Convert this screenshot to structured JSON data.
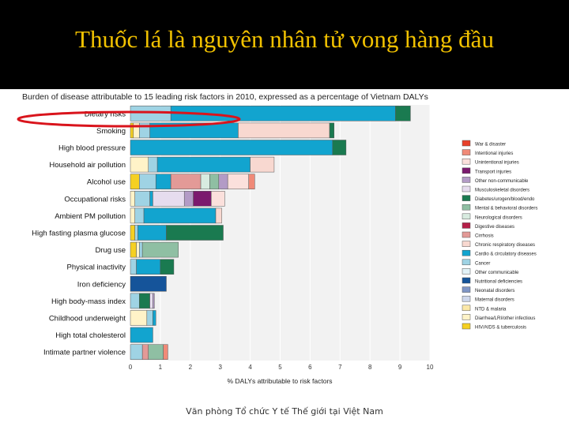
{
  "slide": {
    "title": "Thuốc lá là nguyên nhân tử vong hàng đầu",
    "footer": "Văn phòng Tổ chức Y tế Thế giới tại Việt Nam"
  },
  "chart_data": {
    "type": "bar",
    "orientation": "horizontal",
    "stacked": true,
    "title": "Burden of disease attributable to 15 leading risk factors in 2010, expressed as a percentage of Vietnam DALYs",
    "xlabel": "% DALYs attributable to risk factors",
    "ylabel": "",
    "xlim": [
      0,
      10
    ],
    "xticks": [
      "0",
      "1",
      "2",
      "3",
      "4",
      "5",
      "6",
      "7",
      "8",
      "9",
      "10"
    ],
    "grid": true,
    "legend_position": "right",
    "highlight": "Dietary risks",
    "categories": [
      "Dietary risks",
      "Smoking",
      "High blood pressure",
      "Household air pollution",
      "Alcohol use",
      "Occupational risks",
      "Ambient PM pollution",
      "High fasting plasma glucose",
      "Drug use",
      "Physical inactivity",
      "Iron deficiency",
      "High body-mass index",
      "Childhood underweight",
      "High total cholesterol",
      "Intimate partner violence"
    ],
    "legend": [
      {
        "name": "War & disaster",
        "color": "#e8402a"
      },
      {
        "name": "Intentional injuries",
        "color": "#f08a78"
      },
      {
        "name": "Unintentional injuries",
        "color": "#fbe0dc"
      },
      {
        "name": "Transport injuries",
        "color": "#7b1a6e"
      },
      {
        "name": "Other non-communicable",
        "color": "#b39bc6"
      },
      {
        "name": "Musculoskeletal disorders",
        "color": "#e6dcee"
      },
      {
        "name": "Diabetes/urogen/blood/endo",
        "color": "#1a7a50"
      },
      {
        "name": "Mental & behavioral disorders",
        "color": "#8fbfa3"
      },
      {
        "name": "Neurological disorders",
        "color": "#d8ebe0"
      },
      {
        "name": "Digestive diseases",
        "color": "#b51f48"
      },
      {
        "name": "Cirrhosis",
        "color": "#e39a97"
      },
      {
        "name": "Chronic respiratory diseases",
        "color": "#f8d8d0"
      },
      {
        "name": "Cardio & circulatory diseases",
        "color": "#12a4cf"
      },
      {
        "name": "Cancer",
        "color": "#9fd3e4"
      },
      {
        "name": "Other communicable",
        "color": "#e2f2f7"
      },
      {
        "name": "Nutritional deficiencies",
        "color": "#15549a"
      },
      {
        "name": "Neonatal disorders",
        "color": "#7f96c6"
      },
      {
        "name": "Maternal disorders",
        "color": "#cfd8ec"
      },
      {
        "name": "NTD & malaria",
        "color": "#fbe8a8"
      },
      {
        "name": "Diarrhea/LRI/other infectious",
        "color": "#fff3c8"
      },
      {
        "name": "HIV/AIDS & tuberculosis",
        "color": "#f5d022"
      }
    ],
    "series": [
      {
        "name": "HIV/AIDS & tuberculosis",
        "values": [
          0,
          0.1,
          0,
          0,
          0.3,
          0,
          0,
          0.15,
          0.2,
          0,
          0,
          0,
          0,
          0,
          0
        ]
      },
      {
        "name": "Diarrhea/LRI/other infectious",
        "values": [
          0,
          0.2,
          0,
          0.6,
          0,
          0.15,
          0.15,
          0,
          0.1,
          0,
          0,
          0,
          0.55,
          0,
          0
        ]
      },
      {
        "name": "NTD & malaria",
        "values": [
          0,
          0,
          0,
          0,
          0,
          0,
          0,
          0,
          0,
          0,
          0,
          0,
          0,
          0,
          0
        ]
      },
      {
        "name": "Maternal disorders",
        "values": [
          0,
          0,
          0,
          0,
          0,
          0,
          0,
          0,
          0,
          0,
          0,
          0,
          0,
          0,
          0
        ]
      },
      {
        "name": "Neonatal disorders",
        "values": [
          0,
          0,
          0,
          0,
          0,
          0,
          0,
          0,
          0,
          0,
          0,
          0,
          0,
          0,
          0
        ]
      },
      {
        "name": "Nutritional deficiencies",
        "values": [
          0,
          0,
          0,
          0,
          0,
          0,
          0,
          0,
          0,
          0,
          1.2,
          0,
          0,
          0,
          0
        ]
      },
      {
        "name": "Other communicable",
        "values": [
          0,
          0,
          0,
          0,
          0,
          0,
          0,
          0,
          0,
          0,
          0,
          0,
          0,
          0,
          0
        ]
      },
      {
        "name": "Cancer",
        "values": [
          1.35,
          0.35,
          0,
          0.3,
          0.55,
          0.5,
          0.3,
          0.1,
          0.1,
          0.2,
          0,
          0.3,
          0.2,
          0,
          0.4
        ]
      },
      {
        "name": "Cardio & circulatory diseases",
        "values": [
          7.5,
          2.95,
          6.75,
          3.1,
          0.5,
          0.1,
          2.4,
          0.95,
          0,
          0.8,
          0,
          0,
          0.1,
          0.75,
          0
        ]
      },
      {
        "name": "Chronic respiratory diseases",
        "values": [
          0,
          3.05,
          0,
          0.8,
          0,
          0,
          0.2,
          0,
          0,
          0,
          0,
          0,
          0,
          0,
          0
        ]
      },
      {
        "name": "Cirrhosis",
        "values": [
          0,
          0,
          0,
          0,
          1.0,
          0,
          0,
          0,
          0,
          0,
          0,
          0,
          0,
          0,
          0.2
        ]
      },
      {
        "name": "Digestive diseases",
        "values": [
          0,
          0,
          0,
          0,
          0,
          0,
          0,
          0,
          0,
          0,
          0,
          0,
          0,
          0,
          0
        ]
      },
      {
        "name": "Neurological disorders",
        "values": [
          0,
          0,
          0,
          0,
          0.3,
          0,
          0,
          0,
          0,
          0,
          0,
          0,
          0,
          0,
          0
        ]
      },
      {
        "name": "Mental & behavioral disorders",
        "values": [
          0,
          0,
          0,
          0,
          0.3,
          0,
          0,
          0,
          1.2,
          0,
          0,
          0,
          0,
          0,
          0.5
        ]
      },
      {
        "name": "Diabetes/urogen/blood/endo",
        "values": [
          0.5,
          0.15,
          0.45,
          0,
          0,
          0,
          0,
          1.9,
          0,
          0.45,
          0,
          0.35,
          0,
          0,
          0
        ]
      },
      {
        "name": "Musculoskeletal disorders",
        "values": [
          0,
          0,
          0,
          0,
          0,
          1.05,
          0,
          0,
          0,
          0,
          0,
          0.1,
          0,
          0,
          0
        ]
      },
      {
        "name": "Other non-communicable",
        "values": [
          0,
          0,
          0,
          0,
          0.3,
          0.3,
          0,
          0,
          0,
          0,
          0,
          0.05,
          0,
          0,
          0
        ]
      },
      {
        "name": "Transport injuries",
        "values": [
          0,
          0,
          0,
          0,
          0,
          0.6,
          0,
          0,
          0,
          0,
          0,
          0,
          0,
          0,
          0
        ]
      },
      {
        "name": "Unintentional injuries",
        "values": [
          0,
          0,
          0,
          0,
          0.7,
          0.45,
          0,
          0,
          0,
          0,
          0,
          0,
          0,
          0,
          0
        ]
      },
      {
        "name": "Intentional injuries",
        "values": [
          0,
          0,
          0,
          0,
          0.2,
          0,
          0,
          0,
          0,
          0,
          0,
          0,
          0,
          0,
          0.15
        ]
      },
      {
        "name": "War & disaster",
        "values": [
          0,
          0,
          0,
          0,
          0,
          0,
          0,
          0,
          0,
          0,
          0,
          0,
          0,
          0,
          0
        ]
      }
    ]
  }
}
